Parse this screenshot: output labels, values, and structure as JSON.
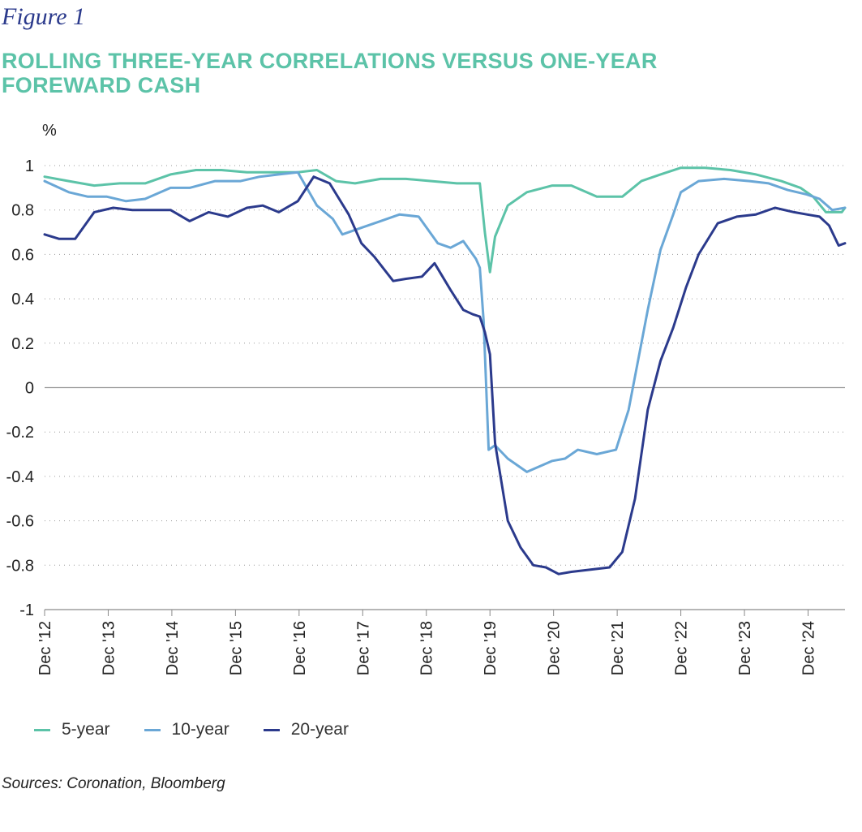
{
  "figure_label": "Figure 1",
  "chart_data": {
    "type": "line",
    "title": "ROLLING THREE-YEAR CORRELATIONS VERSUS ONE-YEAR FOREWARD CASH",
    "ylabel": "%",
    "xlabel": "",
    "ylim": [
      -1,
      1
    ],
    "yticks": [
      1,
      0.8,
      0.6,
      0.4,
      0.2,
      0,
      -0.2,
      -0.4,
      -0.6,
      -0.8,
      -1
    ],
    "ytick_labels": [
      "1",
      "0.8",
      "0.6",
      "0.4",
      "0.2",
      "0",
      "-0.2",
      "-0.4",
      "-0.6",
      "-0.8",
      "-1"
    ],
    "xlim": [
      2012.92,
      2025.5
    ],
    "xticks": [
      2012.92,
      2013.92,
      2014.92,
      2015.92,
      2016.92,
      2017.92,
      2018.92,
      2019.92,
      2020.92,
      2021.92,
      2022.92,
      2023.92,
      2024.92
    ],
    "xtick_labels": [
      "Dec '12",
      "Dec '13",
      "Dec '14",
      "Dec '15",
      "Dec '16",
      "Dec '17",
      "Dec '18",
      "Dec '19",
      "Dec '20",
      "Dec '21",
      "Dec '22",
      "Dec '23",
      "Dec '24"
    ],
    "grid": "horizontal-dotted",
    "legend_position": "bottom-left",
    "series": [
      {
        "name": "5-year",
        "color": "#5cc3a8",
        "x": [
          2012.92,
          2013.3,
          2013.7,
          2014.1,
          2014.5,
          2014.9,
          2015.3,
          2015.7,
          2016.1,
          2016.5,
          2016.9,
          2017.2,
          2017.5,
          2017.8,
          2018.2,
          2018.6,
          2019.0,
          2019.4,
          2019.76,
          2019.84,
          2019.92,
          2020.0,
          2020.2,
          2020.5,
          2020.9,
          2021.2,
          2021.6,
          2022.0,
          2022.3,
          2022.6,
          2022.92,
          2023.3,
          2023.7,
          2024.1,
          2024.5,
          2024.8,
          2025.0,
          2025.2,
          2025.3,
          2025.45,
          2025.5
        ],
        "values": [
          0.95,
          0.93,
          0.91,
          0.92,
          0.92,
          0.96,
          0.98,
          0.98,
          0.97,
          0.97,
          0.97,
          0.98,
          0.93,
          0.92,
          0.94,
          0.94,
          0.93,
          0.92,
          0.92,
          0.7,
          0.52,
          0.68,
          0.82,
          0.88,
          0.91,
          0.91,
          0.86,
          0.86,
          0.93,
          0.96,
          0.99,
          0.99,
          0.98,
          0.96,
          0.93,
          0.9,
          0.86,
          0.79,
          0.79,
          0.79,
          0.81
        ]
      },
      {
        "name": "10-year",
        "color": "#6aa7d6",
        "x": [
          2012.92,
          2013.3,
          2013.6,
          2013.9,
          2014.2,
          2014.5,
          2014.9,
          2015.2,
          2015.6,
          2016.0,
          2016.3,
          2016.6,
          2016.9,
          2017.2,
          2017.45,
          2017.6,
          2017.9,
          2018.2,
          2018.5,
          2018.8,
          2019.1,
          2019.3,
          2019.5,
          2019.7,
          2019.76,
          2019.82,
          2019.9,
          2020.0,
          2020.2,
          2020.5,
          2020.9,
          2021.1,
          2021.3,
          2021.6,
          2021.9,
          2022.1,
          2022.4,
          2022.6,
          2022.8,
          2022.92,
          2023.2,
          2023.6,
          2024.0,
          2024.3,
          2024.6,
          2024.9,
          2025.1,
          2025.3,
          2025.5
        ],
        "values": [
          0.93,
          0.88,
          0.86,
          0.86,
          0.84,
          0.85,
          0.9,
          0.9,
          0.93,
          0.93,
          0.95,
          0.96,
          0.97,
          0.82,
          0.76,
          0.69,
          0.72,
          0.75,
          0.78,
          0.77,
          0.65,
          0.63,
          0.66,
          0.58,
          0.54,
          0.3,
          -0.28,
          -0.26,
          -0.32,
          -0.38,
          -0.33,
          -0.32,
          -0.28,
          -0.3,
          -0.28,
          -0.1,
          0.35,
          0.62,
          0.78,
          0.88,
          0.93,
          0.94,
          0.93,
          0.92,
          0.89,
          0.87,
          0.85,
          0.8,
          0.81
        ]
      },
      {
        "name": "20-year",
        "color": "#2b3a8c",
        "x": [
          2012.92,
          2013.15,
          2013.4,
          2013.7,
          2014.0,
          2014.3,
          2014.6,
          2014.9,
          2015.2,
          2015.5,
          2015.8,
          2016.1,
          2016.35,
          2016.6,
          2016.9,
          2017.15,
          2017.4,
          2017.7,
          2017.9,
          2018.1,
          2018.4,
          2018.6,
          2018.85,
          2019.05,
          2019.3,
          2019.5,
          2019.65,
          2019.76,
          2019.84,
          2019.92,
          2020.0,
          2020.2,
          2020.4,
          2020.6,
          2020.8,
          2021.0,
          2021.2,
          2021.5,
          2021.8,
          2022.0,
          2022.2,
          2022.4,
          2022.6,
          2022.8,
          2023.0,
          2023.2,
          2023.5,
          2023.8,
          2024.1,
          2024.4,
          2024.7,
          2024.9,
          2025.1,
          2025.25,
          2025.4,
          2025.5
        ],
        "values": [
          0.69,
          0.67,
          0.67,
          0.79,
          0.81,
          0.8,
          0.8,
          0.8,
          0.75,
          0.79,
          0.77,
          0.81,
          0.82,
          0.79,
          0.84,
          0.95,
          0.92,
          0.78,
          0.65,
          0.59,
          0.48,
          0.49,
          0.5,
          0.56,
          0.44,
          0.35,
          0.33,
          0.32,
          0.25,
          0.15,
          -0.25,
          -0.6,
          -0.72,
          -0.8,
          -0.81,
          -0.84,
          -0.83,
          -0.82,
          -0.81,
          -0.74,
          -0.5,
          -0.1,
          0.12,
          0.27,
          0.45,
          0.6,
          0.74,
          0.77,
          0.78,
          0.81,
          0.79,
          0.78,
          0.77,
          0.73,
          0.64,
          0.65
        ]
      }
    ]
  },
  "source": "Sources: Coronation, Bloomberg"
}
